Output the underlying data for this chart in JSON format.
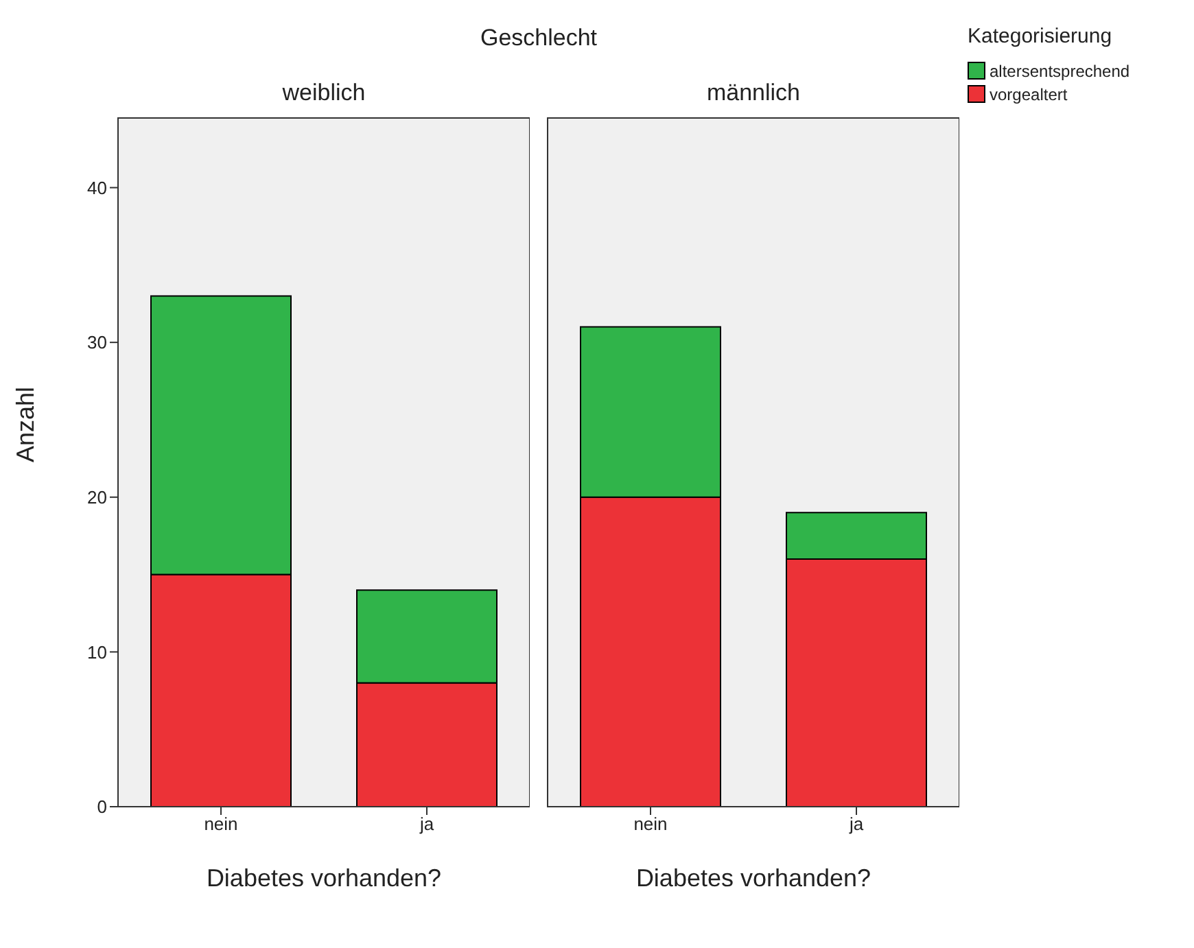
{
  "chart_data": [
    {
      "type": "bar",
      "title": "weiblich",
      "annotations": [
        "Geschlecht"
      ],
      "xlabel": "Diabetes vorhanden?",
      "ylabel": "Anzahl",
      "categories": [
        "nein",
        "ja"
      ],
      "stacked": true,
      "ylim": [
        0,
        44.5
      ],
      "yticks": [
        0,
        10,
        20,
        30,
        40
      ],
      "series": [
        {
          "color": "#ec3237",
          "values": [
            15,
            8
          ]
        },
        {
          "color": "#30b44a",
          "values": [
            18,
            6
          ]
        }
      ]
    },
    {
      "type": "bar",
      "title": "männlich",
      "xlabel": "Diabetes vorhanden?",
      "categories": [
        "nein",
        "ja"
      ],
      "stacked": true,
      "ylim": [
        0,
        44.5
      ],
      "yticks": [
        0,
        10,
        20,
        30,
        40
      ],
      "tick_labels": "x",
      "legend": "top right",
      "legend_title": "Kategorisierung",
      "series": [
        {
          "name": "vorgealtert",
          "color": "#ec3237",
          "values": [
            20,
            16
          ]
        },
        {
          "name": "altersentsprechend",
          "color": "#30b44a",
          "values": [
            11,
            3
          ]
        }
      ]
    }
  ]
}
